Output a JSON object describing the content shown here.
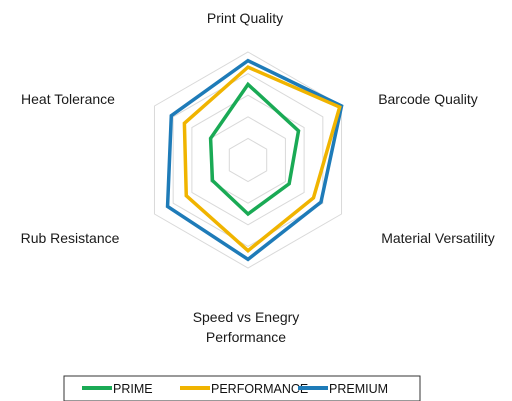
{
  "chart_data": {
    "type": "radar",
    "axes": [
      {
        "label_lines": [
          "Print Quality"
        ]
      },
      {
        "label_lines": [
          "Barcode Quality"
        ]
      },
      {
        "label_lines": [
          "Material Versatility"
        ]
      },
      {
        "label_lines": [
          "Speed vs Enegry",
          "Performance"
        ]
      },
      {
        "label_lines": [
          "Rub Resistance"
        ]
      },
      {
        "label_lines": [
          "Heat Tolerance"
        ]
      }
    ],
    "range": [
      0,
      5
    ],
    "grid_rings": 5,
    "grid": true,
    "legend_position": "bottom",
    "series": [
      {
        "name": "PRIME",
        "color": "#1aaa55",
        "values": [
          3.5,
          2.7,
          2.2,
          2.5,
          1.9,
          2.0
        ]
      },
      {
        "name": "PERFORMANCE",
        "color": "#f0b400",
        "values": [
          4.3,
          4.9,
          3.5,
          4.2,
          3.3,
          3.4
        ]
      },
      {
        "name": "PREMIUM",
        "color": "#1e7bb8",
        "values": [
          4.6,
          5.0,
          3.9,
          4.6,
          4.3,
          4.1
        ]
      }
    ]
  }
}
